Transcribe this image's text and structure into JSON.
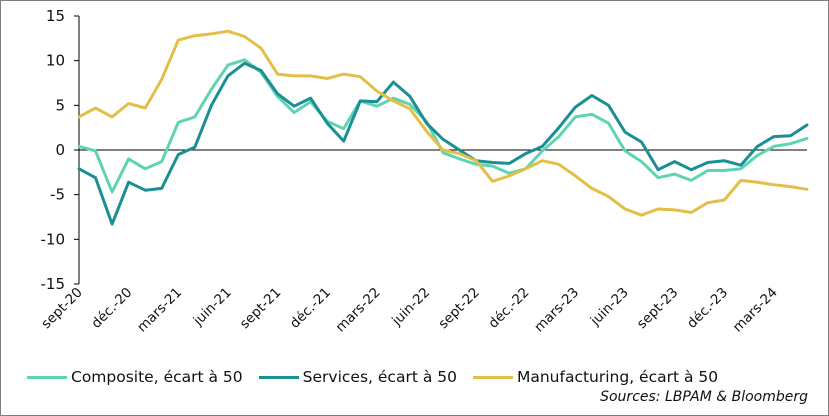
{
  "chart_data": {
    "type": "line",
    "ylim": [
      -15,
      15
    ],
    "yticks": [
      15,
      10,
      5,
      0,
      -5,
      -10,
      -15
    ],
    "x_labels": [
      "sept-20",
      "déc.-20",
      "mars-21",
      "juin-21",
      "sept-21",
      "déc.-21",
      "mars-22",
      "juin-22",
      "sept-22",
      "déc.-22",
      "mars-23",
      "juin-23",
      "sept-23",
      "déc.-23",
      "mars-24"
    ],
    "x": [
      "sept-20",
      "oct-20",
      "nov-20",
      "déc.-20",
      "janv-21",
      "févr-21",
      "mars-21",
      "avr-21",
      "mai-21",
      "juin-21",
      "juil-21",
      "août-21",
      "sept-21",
      "oct-21",
      "nov-21",
      "déc.-21",
      "janv-22",
      "févr-22",
      "mars-22",
      "avr-22",
      "mai-22",
      "juin-22",
      "juil-22",
      "août-22",
      "sept-22",
      "oct-22",
      "nov-22",
      "déc.-22",
      "janv-23",
      "févr-23",
      "mars-23",
      "avr-23",
      "mai-23",
      "juin-23",
      "juil-23",
      "août-23",
      "sept-23",
      "oct-23",
      "nov-23",
      "déc.-23",
      "janv-24",
      "févr-24",
      "mars-24",
      "avr-24",
      "mai-24"
    ],
    "series": [
      {
        "name": "Composite, écart à 50",
        "color": "#5fd4b4",
        "values": [
          0.4,
          -0.1,
          -4.7,
          -1.0,
          -2.1,
          -1.3,
          3.1,
          3.7,
          6.8,
          9.5,
          10.1,
          8.7,
          6.0,
          4.2,
          5.4,
          3.2,
          2.4,
          5.5,
          4.9,
          5.8,
          5.1,
          3.2,
          -0.3,
          -1.0,
          -1.6,
          -1.8,
          -2.6,
          -2.1,
          -0.1,
          1.5,
          3.7,
          4.0,
          3.0,
          -0.1,
          -1.3,
          -3.1,
          -2.7,
          -3.4,
          -2.3,
          -2.3,
          -2.1,
          -0.6,
          0.4,
          0.7,
          1.3
        ]
      },
      {
        "name": "Services, écart à 50",
        "color": "#1a8f94",
        "values": [
          -2.1,
          -3.1,
          -8.3,
          -3.6,
          -4.5,
          -4.3,
          -0.5,
          0.3,
          5.0,
          8.3,
          9.7,
          8.9,
          6.3,
          4.9,
          5.8,
          3.0,
          1.0,
          5.5,
          5.4,
          7.6,
          6.0,
          3.0,
          1.2,
          0.0,
          -1.2,
          -1.4,
          -1.5,
          -0.4,
          0.4,
          2.5,
          4.8,
          6.1,
          5.0,
          2.0,
          0.9,
          -2.2,
          -1.3,
          -2.2,
          -1.4,
          -1.2,
          -1.7,
          0.4,
          1.5,
          1.6,
          2.8
        ]
      },
      {
        "name": "Manufacturing, écart à 50",
        "color": "#e4bf47",
        "values": [
          3.7,
          4.7,
          3.7,
          5.2,
          4.7,
          7.9,
          12.3,
          12.8,
          13.0,
          13.3,
          12.7,
          11.4,
          8.5,
          8.3,
          8.3,
          8.0,
          8.5,
          8.2,
          6.6,
          5.5,
          4.6,
          2.1,
          0.0,
          -0.4,
          -1.2,
          -3.5,
          -2.9,
          -2.1,
          -1.2,
          -1.6,
          -2.9,
          -4.3,
          -5.2,
          -6.6,
          -7.3,
          -6.6,
          -6.7,
          -7.0,
          -5.9,
          -5.6,
          -3.4,
          -3.6,
          -3.9,
          -4.1,
          -4.4
        ]
      }
    ]
  },
  "legend": {
    "composite": "Composite, écart à 50",
    "services": "Services, écart à 50",
    "manufacturing": "Manufacturing, écart à 50"
  },
  "colors": {
    "composite": "#5fd4b4",
    "services": "#1a8f94",
    "manufacturing": "#e4bf47"
  },
  "source": "Sources: LBPAM & Bloomberg"
}
